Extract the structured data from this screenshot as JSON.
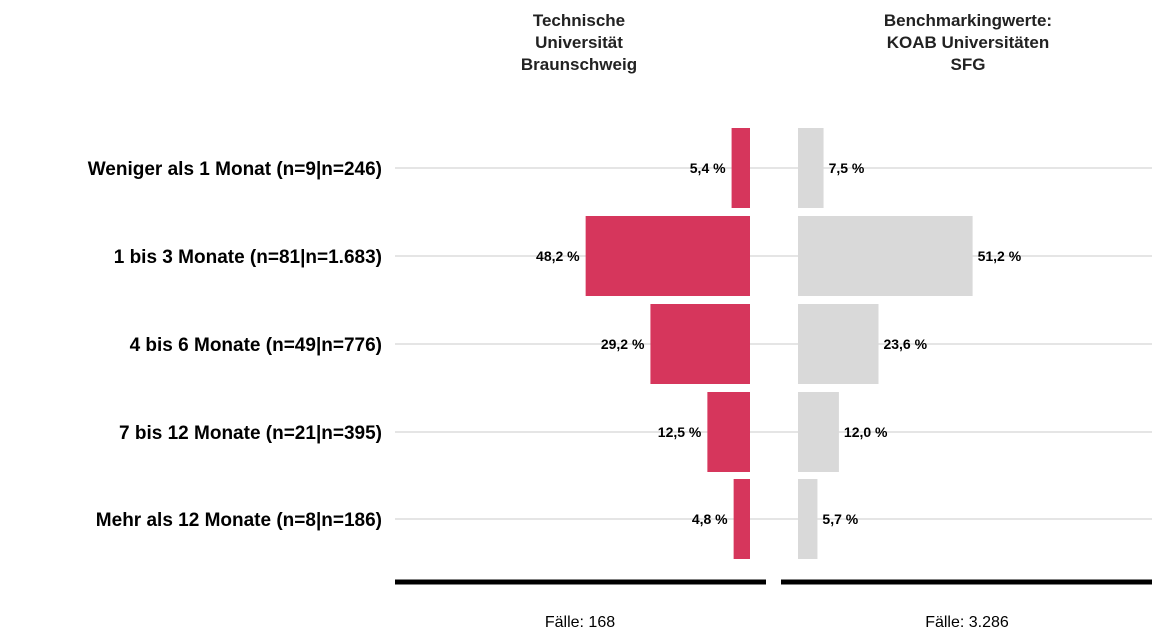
{
  "chart_data": {
    "type": "bar",
    "orientation": "horizontal-diverging",
    "categories": [
      "Weniger als 1 Monat (n=9|n=246)",
      "1 bis 3 Monate (n=81|n=1.683)",
      "4 bis 6 Monate (n=49|n=776)",
      "7 bis 12 Monate (n=21|n=395)",
      "Mehr als 12 Monate (n=8|n=186)"
    ],
    "series": [
      {
        "name": "Technische Universität Braunschweig",
        "header_lines": [
          "Technische",
          "Universität",
          "Braunschweig"
        ],
        "values": [
          5.4,
          48.2,
          29.2,
          12.5,
          4.8
        ],
        "labels": [
          "5,4 %",
          "48,2 %",
          "29,2 %",
          "12,5 %",
          "4,8 %"
        ],
        "color": "#d6365c",
        "footer": "Fälle: 168"
      },
      {
        "name": "Benchmarkingwerte: KOAB Universitäten SFG",
        "header_lines": [
          "Benchmarkingwerte:",
          "KOAB Universitäten",
          "SFG"
        ],
        "values": [
          7.5,
          51.2,
          23.6,
          12.0,
          5.7
        ],
        "labels": [
          "7,5 %",
          "51,2 %",
          "23,6 %",
          "12,0 %",
          "5,7 %"
        ],
        "color": "#d9d9d9",
        "footer": "Fälle: 3.286"
      }
    ],
    "unit": "%",
    "grid": false
  }
}
